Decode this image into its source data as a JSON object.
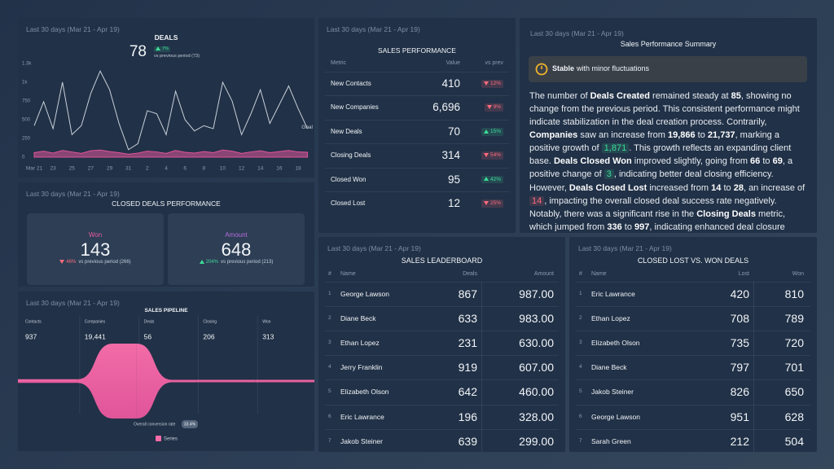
{
  "chart_data": [
    {
      "type": "line",
      "period": "Last 30 days (Mar 21 - Apr 19)",
      "title": "DEALS",
      "value": 78,
      "change": "7%",
      "change_direction": "up",
      "comparison": "vs previous period (73)",
      "categories": [
        "Mar 21",
        null,
        "23",
        null,
        "25",
        null,
        "27",
        null,
        "29",
        null,
        "31",
        null,
        "2",
        null,
        "4",
        null,
        "6",
        null,
        "8",
        null,
        "10",
        null,
        "12",
        null,
        "14",
        null,
        "16",
        null,
        "18",
        null
      ],
      "series": [
        {
          "name": "Goal",
          "color": "#c9d0da",
          "values": [
            420,
            740,
            380,
            1000,
            300,
            420,
            850,
            1150,
            900,
            450,
            100,
            180,
            620,
            580,
            300,
            880,
            500,
            350,
            420,
            380,
            1000,
            750,
            300,
            580,
            900,
            450,
            700,
            950,
            650,
            380
          ]
        },
        {
          "color": "#e0559a",
          "fill": true,
          "values": [
            60,
            80,
            55,
            90,
            70,
            50,
            85,
            95,
            75,
            60,
            40,
            55,
            80,
            70,
            50,
            90,
            65,
            55,
            75,
            60,
            95,
            80,
            50,
            70,
            85,
            60,
            75,
            90,
            70,
            65
          ]
        }
      ],
      "ylim": [
        0,
        1250
      ],
      "yticks": [
        0,
        250,
        500,
        750,
        {
          "value": 1000,
          "label": "1k"
        },
        {
          "value": 1250,
          "label": "1.3k"
        }
      ],
      "grid": false
    },
    {
      "type": "funnel",
      "period": "Last 30 days (Mar 21 - Apr 19)",
      "title": "SALES PIPELINE",
      "categories": [
        "Contacts",
        "Companies",
        "Deals",
        "Closing",
        "Won"
      ],
      "series": [
        {
          "name": "Series",
          "color": "#f26ca7",
          "values": [
            937,
            19441,
            56,
            206,
            313
          ],
          "value_labels": [
            "937",
            "19,441",
            "56",
            "206",
            "313"
          ]
        }
      ],
      "conversion_label": "Overall conversion rate",
      "conversion": "33.4%"
    }
  ],
  "closed_deals": {
    "period": "Last 30 days (Mar 21 - Apr 19)",
    "title": "CLOSED DEALS PERFORMANCE",
    "cards": [
      {
        "label": "Won",
        "color": "#ec5d9e",
        "value": "143",
        "change": "46%",
        "direction": "down",
        "comparison": "vs previous period (266)"
      },
      {
        "label": "Amount",
        "color": "#b46ddb",
        "value": "648",
        "change": "204%",
        "direction": "up",
        "comparison": "vs previous period (213)"
      }
    ]
  },
  "sales_performance": {
    "period": "Last 30 days (Mar 21 - Apr 19)",
    "title": "SALES PERFORMANCE",
    "columns": [
      "Metric",
      "Value",
      "vs prev"
    ],
    "rows": [
      {
        "metric": "New Contacts",
        "value": "410",
        "change": "12%",
        "direction": "down"
      },
      {
        "metric": "New Companies",
        "value": "6,696",
        "change": "9%",
        "direction": "down"
      },
      {
        "metric": "New Deals",
        "value": "70",
        "change": "15%",
        "direction": "up"
      },
      {
        "metric": "Closing Deals",
        "value": "314",
        "change": "54%",
        "direction": "down"
      },
      {
        "metric": "Closed Won",
        "value": "95",
        "change": "42%",
        "direction": "up"
      },
      {
        "metric": "Closed Lost",
        "value": "12",
        "change": "25%",
        "direction": "down"
      }
    ]
  },
  "summary": {
    "period": "Last 30 days (Mar 21 - Apr 19)",
    "title": "Sales Performance Summary",
    "status": {
      "label": "Stable",
      "text": "with minor fluctuations"
    },
    "paragraphs": [
      [
        {
          "text": "The number of "
        },
        {
          "text": "Deals Created",
          "style": "bold"
        },
        {
          "text": " remained steady at "
        },
        {
          "text": "85",
          "style": "bold"
        },
        {
          "text": ", showing no change from the previous period. This consistent performance might indicate stabilization in the deal creation process. Contrarily, "
        },
        {
          "text": "Companies",
          "style": "bold"
        },
        {
          "text": " saw an increase from "
        },
        {
          "text": "19,866",
          "style": "bold"
        },
        {
          "text": " to "
        },
        {
          "text": "21,737",
          "style": "bold"
        },
        {
          "text": ", marking a positive growth of "
        },
        {
          "text": "1,871",
          "style": "positive"
        },
        {
          "text": ". This growth reflects an expanding client base. "
        },
        {
          "text": "Deals Closed Won",
          "style": "bold"
        },
        {
          "text": " improved slightly, going from "
        },
        {
          "text": "66",
          "style": "bold"
        },
        {
          "text": " to "
        },
        {
          "text": "69",
          "style": "bold"
        },
        {
          "text": ", a positive change of "
        },
        {
          "text": "3",
          "style": "positive"
        },
        {
          "text": ", indicating better deal closing efficiency."
        }
      ],
      [
        {
          "text": "However, "
        },
        {
          "text": "Deals Closed Lost",
          "style": "bold"
        },
        {
          "text": " increased from "
        },
        {
          "text": "14",
          "style": "bold"
        },
        {
          "text": " to "
        },
        {
          "text": "28",
          "style": "bold"
        },
        {
          "text": ", an increase of "
        },
        {
          "text": "14",
          "style": "negative"
        },
        {
          "text": ", impacting the overall closed deal success rate negatively. Notably, there was a significant rise in the "
        },
        {
          "text": "Closing Deals",
          "style": "bold"
        },
        {
          "text": " metric, which jumped from "
        },
        {
          "text": "336",
          "style": "bold"
        },
        {
          "text": " to "
        },
        {
          "text": "997",
          "style": "bold"
        },
        {
          "text": ", indicating enhanced deal closure"
        }
      ]
    ]
  },
  "leaderboard": {
    "period": "Last 30 days (Mar 21 - Apr 19)",
    "title": "SALES LEADERBOARD",
    "columns": [
      "#",
      "Name",
      "Deals",
      "Amount"
    ],
    "rows": [
      [
        "1",
        "George Lawson",
        "867",
        "987.00"
      ],
      [
        "2",
        "Diane Beck",
        "633",
        "983.00"
      ],
      [
        "3",
        "Ethan Lopez",
        "231",
        "630.00"
      ],
      [
        "4",
        "Jerry Franklin",
        "919",
        "607.00"
      ],
      [
        "5",
        "Elizabeth Olson",
        "642",
        "460.00"
      ],
      [
        "6",
        "Eric Lawrance",
        "196",
        "328.00"
      ],
      [
        "7",
        "Jakob Steiner",
        "639",
        "299.00"
      ]
    ]
  },
  "lost_vs_won": {
    "period": "Last 30 days (Mar 21 - Apr 19)",
    "title": "CLOSED LOST VS. WON DEALS",
    "columns": [
      "#",
      "Name",
      "Lost",
      "Won"
    ],
    "rows": [
      [
        "1",
        "Eric Lawrance",
        "420",
        "810"
      ],
      [
        "2",
        "Ethan Lopez",
        "708",
        "789"
      ],
      [
        "3",
        "Elizabeth Olson",
        "735",
        "720"
      ],
      [
        "4",
        "Diane Beck",
        "797",
        "701"
      ],
      [
        "5",
        "Jakob Steiner",
        "826",
        "650"
      ],
      [
        "6",
        "George Lawson",
        "951",
        "628"
      ],
      [
        "7",
        "Sarah Green",
        "212",
        "504"
      ]
    ]
  }
}
